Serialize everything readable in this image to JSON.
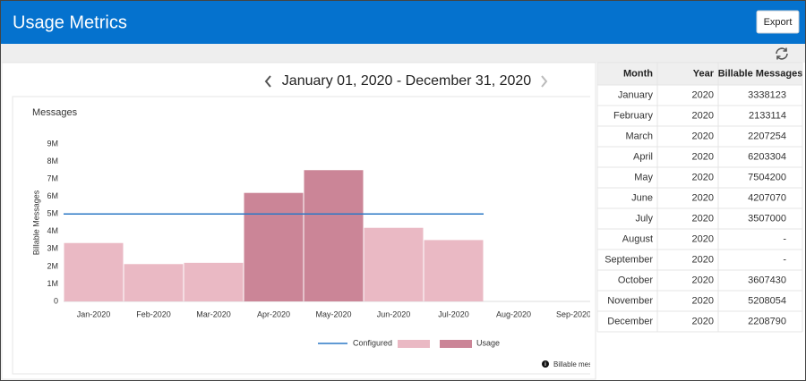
{
  "header": {
    "title": "Usage Metrics",
    "export_button": "Export"
  },
  "date_range": "January 01, 2020 - December 31, 2020",
  "chart_data": {
    "type": "bar",
    "title": "Messages",
    "y_label": "Billable Messages",
    "categories": [
      "Jan-2020",
      "Feb-2020",
      "Mar-2020",
      "Apr-2020",
      "May-2020",
      "Jun-2020",
      "Jul-2020",
      "Aug-2020",
      "Sep-2020"
    ],
    "values": [
      3338123,
      2133114,
      2207254,
      6203304,
      7504200,
      4207070,
      3507000,
      null,
      null
    ],
    "color": "#eab9c4",
    "over_color": "#cb8597",
    "series_name": "Usage",
    "threshold": {
      "name": "Configured",
      "value": 5000000,
      "color": "#2b78c5"
    },
    "ylim": [
      0,
      9000000
    ],
    "yticks": [
      0,
      {
        "value": 1000000,
        "label": "1M"
      },
      {
        "value": 2000000,
        "label": "2M"
      },
      {
        "value": 3000000,
        "label": "3M"
      },
      {
        "value": 4000000,
        "label": "4M"
      },
      {
        "value": 5000000,
        "label": "5M"
      },
      {
        "value": 6000000,
        "label": "6M"
      },
      {
        "value": 7000000,
        "label": "7M"
      },
      {
        "value": 8000000,
        "label": "8M"
      },
      {
        "value": 9000000,
        "label": "9M"
      }
    ],
    "note": "Billable mes"
  },
  "table": {
    "columns": [
      "Month",
      "Year",
      "Billable Messages"
    ],
    "rows": [
      [
        "January",
        "2020",
        "3338123"
      ],
      [
        "February",
        "2020",
        "2133114"
      ],
      [
        "March",
        "2020",
        "2207254"
      ],
      [
        "April",
        "2020",
        "6203304"
      ],
      [
        "May",
        "2020",
        "7504200"
      ],
      [
        "June",
        "2020",
        "4207070"
      ],
      [
        "July",
        "2020",
        "3507000"
      ],
      [
        "August",
        "2020",
        "-"
      ],
      [
        "September",
        "2020",
        "-"
      ],
      [
        "October",
        "2020",
        "3607430"
      ],
      [
        "November",
        "2020",
        "5208054"
      ],
      [
        "December",
        "2020",
        "2208790"
      ]
    ]
  }
}
